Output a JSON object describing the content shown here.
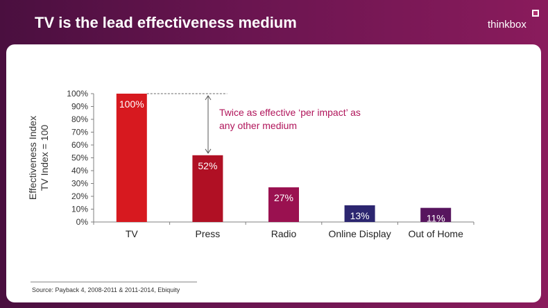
{
  "slide": {
    "title": "TV is the lead effectiveness medium",
    "brand": "thinkbox",
    "source": "Source: Payback 4, 2008-2011 & 2011-2014,  Ebiquity"
  },
  "chart_data": {
    "type": "bar",
    "title": "TV is the lead effectiveness medium",
    "categories": [
      "TV",
      "Press",
      "Radio",
      "Online Display",
      "Out of Home"
    ],
    "values": [
      100,
      52,
      27,
      13,
      11
    ],
    "data_labels": [
      "100%",
      "52%",
      "27%",
      "13%",
      "11%"
    ],
    "colors": [
      "#d7191f",
      "#b01024",
      "#9a1150",
      "#2c2670",
      "#57155e"
    ],
    "ylabel_lines": [
      "Effectiveness Index",
      "TV Index = 100"
    ],
    "xlabel": "",
    "ylim": [
      0,
      100
    ],
    "yticks": [
      0,
      10,
      20,
      30,
      40,
      50,
      60,
      70,
      80,
      90,
      100
    ],
    "ytick_labels": [
      "0%",
      "10%",
      "20%",
      "30%",
      "40%",
      "50%",
      "60%",
      "70%",
      "80%",
      "90%",
      "100%"
    ],
    "grid": false,
    "annotation": {
      "text_lines": [
        "Twice as effective ‘per impact’ as",
        "any other medium"
      ],
      "from_value": 100,
      "to_value": 52,
      "color": "#b0145a"
    }
  }
}
